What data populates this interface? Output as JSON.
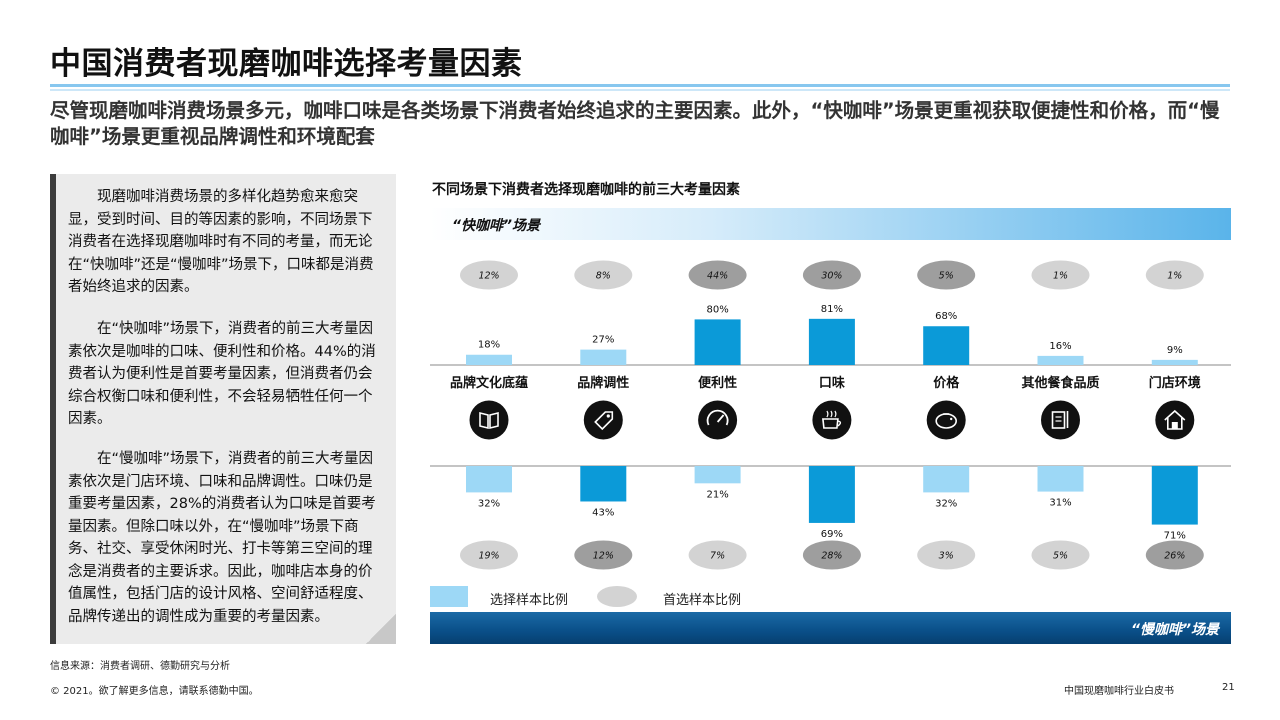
{
  "page": {
    "title": "中国消费者现磨咖啡选择考量因素",
    "subtitle": "尽管现磨咖啡消费场景多元，咖啡口味是各类场景下消费者始终追求的主要因素。此外，“快咖啡”场景更重视获取便捷性和价格，而“慢咖啡”场景更重视品牌调性和环境配套",
    "sidebar": {
      "p1": "现磨咖啡消费场景的多样化趋势愈来愈突显，受到时间、目的等因素的影响，不同场景下消费者在选择现磨咖啡时有不同的考量，而无论在“快咖啡”还是“慢咖啡”场景下，口味都是消费者始终追求的因素。",
      "p2": "在“快咖啡”场景下，消费者的前三大考量因素依次是咖啡的口味、便利性和价格。44%的消费者认为便利性是首要考量因素，但消费者仍会综合权衡口味和便利性，不会轻易牺牲任何一个因素。",
      "p3": "在“慢咖啡”场景下，消费者的前三大考量因素依次是门店环境、口味和品牌调性。口味仍是重要考量因素，28%的消费者认为口味是首要考量因素。但除口味以外，在“慢咖啡”场景下商务、社交、享受休闲时光、打卡等第三空间的理念是消费者的主要诉求。因此，咖啡店本身的价值属性，包括门店的设计风格、空间舒适程度、品牌传递出的调性成为重要的考量因素。"
    },
    "footer": {
      "source": "信息来源：消费者调研、德勤研究与分析",
      "copyright": "© 2021。欲了解更多信息，请联系德勤中国。",
      "doc_name": "中国现磨咖啡行业白皮书",
      "page_number": "21"
    },
    "colors": {
      "bar_highlight": "#0b9ad8",
      "bar_light": "#9dd8f6",
      "pill_dark": "#9e9e9e",
      "pill_light": "#d3d3d3"
    }
  },
  "chart_data": {
    "type": "bar",
    "title": "不同场景下消费者选择现磨咖啡的前三大考量因素",
    "categories": [
      "品牌文化底蕴",
      "品牌调性",
      "便利性",
      "口味",
      "价格",
      "其他餐食品质",
      "门店环境"
    ],
    "icons": [
      "book-icon",
      "tag-icon",
      "speedometer-icon",
      "coffee-cup-icon",
      "piggy-bank-icon",
      "food-menu-icon",
      "store-house-icon"
    ],
    "series": [
      {
        "name": "“快咖啡”场景",
        "values": [
          18,
          27,
          80,
          81,
          68,
          16,
          9
        ],
        "first_choice": [
          12,
          8,
          44,
          30,
          5,
          1,
          1
        ],
        "top3": [
          false,
          false,
          true,
          true,
          true,
          false,
          false
        ]
      },
      {
        "name": "“慢咖啡”场景",
        "values": [
          32,
          43,
          21,
          69,
          32,
          31,
          71
        ],
        "first_choice": [
          19,
          12,
          7,
          28,
          3,
          5,
          26
        ],
        "top3": [
          false,
          true,
          false,
          true,
          false,
          false,
          true
        ]
      }
    ],
    "legend": [
      "选择样本比例",
      "首选样本比例"
    ],
    "ylim": [
      0,
      100
    ]
  }
}
